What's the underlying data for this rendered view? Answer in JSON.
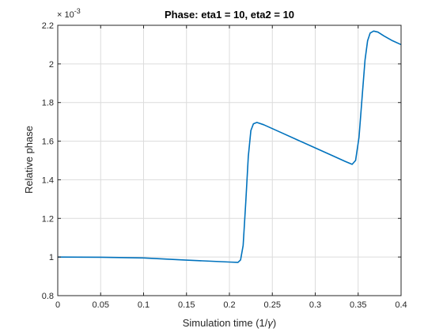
{
  "chart_data": {
    "type": "line",
    "title": "Phase: eta1 = 10, eta2 = 10",
    "xlabel_prefix": "Simulation time (1/",
    "xlabel_symbol": "γ",
    "xlabel_suffix": ")",
    "ylabel": "Relative phase",
    "y_multiplier": {
      "base": "× 10",
      "exponent": "-3"
    },
    "xlim": [
      0,
      0.4
    ],
    "ylim": [
      0.8,
      2.2
    ],
    "xticks": [
      0,
      0.05,
      0.1,
      0.15,
      0.2,
      0.25,
      0.3,
      0.35,
      0.4
    ],
    "xtick_labels": [
      "0",
      "0.05",
      "0.1",
      "0.15",
      "0.2",
      "0.25",
      "0.3",
      "0.35",
      "0.4"
    ],
    "yticks": [
      0.8,
      1.0,
      1.2,
      1.4,
      1.6,
      1.8,
      2.0,
      2.2
    ],
    "ytick_labels": [
      "0.8",
      "1",
      "1.2",
      "1.4",
      "1.6",
      "1.8",
      "2",
      "2.2"
    ],
    "grid": true,
    "series": [
      {
        "color": "#0072bd",
        "x": [
          0,
          0.05,
          0.1,
          0.15,
          0.2,
          0.21,
          0.213,
          0.216,
          0.219,
          0.222,
          0.225,
          0.228,
          0.232,
          0.24,
          0.26,
          0.28,
          0.3,
          0.32,
          0.335,
          0.343,
          0.347,
          0.351,
          0.355,
          0.358,
          0.361,
          0.364,
          0.368,
          0.373,
          0.38,
          0.39,
          0.4
        ],
        "y": [
          1.0,
          0.999,
          0.995,
          0.984,
          0.974,
          0.972,
          0.985,
          1.06,
          1.28,
          1.52,
          1.655,
          1.69,
          1.697,
          1.685,
          1.645,
          1.605,
          1.565,
          1.525,
          1.495,
          1.48,
          1.5,
          1.62,
          1.85,
          2.02,
          2.12,
          2.16,
          2.17,
          2.165,
          2.145,
          2.12,
          2.1
        ]
      }
    ]
  }
}
